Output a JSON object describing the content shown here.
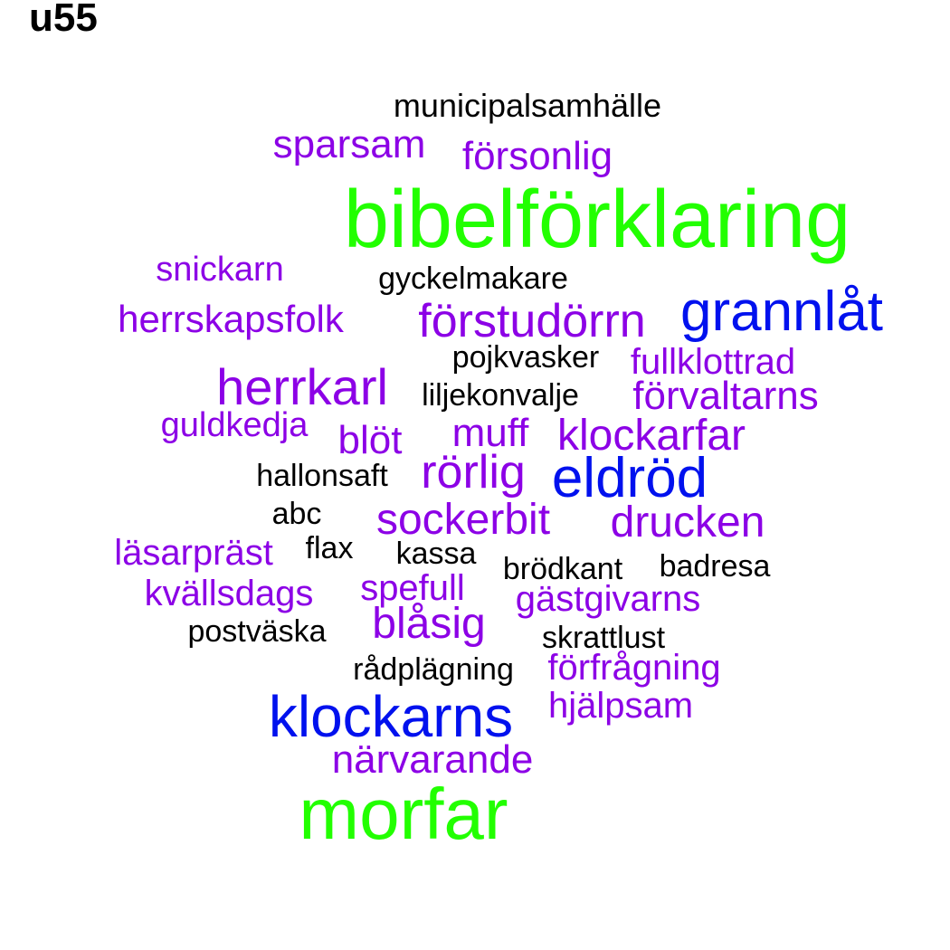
{
  "title": "u55",
  "colors": {
    "green": "#22ff00",
    "blue": "#0011ee",
    "purple": "#8c00e6",
    "black": "#000000"
  },
  "words": [
    {
      "text": "municipalsamhälle",
      "color": "black"
    },
    {
      "text": "sparsam",
      "color": "purple"
    },
    {
      "text": "försonlig",
      "color": "purple"
    },
    {
      "text": "bibelförklaring",
      "color": "green"
    },
    {
      "text": "snickarn",
      "color": "purple"
    },
    {
      "text": "gyckelmakare",
      "color": "black"
    },
    {
      "text": "herrskapsfolk",
      "color": "purple"
    },
    {
      "text": "förstudörrn",
      "color": "purple"
    },
    {
      "text": "grannlåt",
      "color": "blue"
    },
    {
      "text": "pojkvasker",
      "color": "black"
    },
    {
      "text": "fullklottrad",
      "color": "purple"
    },
    {
      "text": "herrkarl",
      "color": "purple"
    },
    {
      "text": "liljekonvalje",
      "color": "black"
    },
    {
      "text": "förvaltarns",
      "color": "purple"
    },
    {
      "text": "guldkedja",
      "color": "purple"
    },
    {
      "text": "blöt",
      "color": "purple"
    },
    {
      "text": "muff",
      "color": "purple"
    },
    {
      "text": "klockarfar",
      "color": "purple"
    },
    {
      "text": "hallonsaft",
      "color": "black"
    },
    {
      "text": "rörlig",
      "color": "purple"
    },
    {
      "text": "eldröd",
      "color": "blue"
    },
    {
      "text": "abc",
      "color": "black"
    },
    {
      "text": "sockerbit",
      "color": "purple"
    },
    {
      "text": "drucken",
      "color": "purple"
    },
    {
      "text": "läsarpräst",
      "color": "purple"
    },
    {
      "text": "flax",
      "color": "black"
    },
    {
      "text": "kassa",
      "color": "black"
    },
    {
      "text": "brödkant",
      "color": "black"
    },
    {
      "text": "badresa",
      "color": "black"
    },
    {
      "text": "kvällsdags",
      "color": "purple"
    },
    {
      "text": "spefull",
      "color": "purple"
    },
    {
      "text": "gästgivarns",
      "color": "purple"
    },
    {
      "text": "postväska",
      "color": "black"
    },
    {
      "text": "blåsig",
      "color": "purple"
    },
    {
      "text": "skrattlust",
      "color": "black"
    },
    {
      "text": "rådplägning",
      "color": "black"
    },
    {
      "text": "förfrågning",
      "color": "purple"
    },
    {
      "text": "klockarns",
      "color": "blue"
    },
    {
      "text": "hjälpsam",
      "color": "purple"
    },
    {
      "text": "närvarande",
      "color": "purple"
    },
    {
      "text": "morfar",
      "color": "green"
    }
  ]
}
